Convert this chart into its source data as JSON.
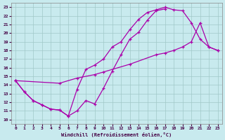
{
  "xlabel": "Windchill (Refroidissement éolien,°C)",
  "xlim": [
    -0.5,
    23.5
  ],
  "ylim": [
    9.5,
    23.5
  ],
  "xticks": [
    0,
    1,
    2,
    3,
    4,
    5,
    6,
    7,
    8,
    9,
    10,
    11,
    12,
    13,
    14,
    15,
    16,
    17,
    18,
    19,
    20,
    21,
    22,
    23
  ],
  "yticks": [
    10,
    11,
    12,
    13,
    14,
    15,
    16,
    17,
    18,
    19,
    20,
    21,
    22,
    23
  ],
  "bg_color": "#c8eaee",
  "line_color": "#aa00aa",
  "grid_color": "#a0c8c8",
  "line1_x": [
    0,
    1,
    2,
    3,
    4,
    5,
    6,
    7,
    8,
    9,
    10,
    11,
    12,
    13,
    14,
    15,
    16,
    17
  ],
  "line1_y": [
    14.5,
    13.2,
    12.2,
    11.7,
    11.2,
    11.1,
    10.4,
    11.0,
    12.2,
    11.8,
    13.6,
    15.6,
    17.5,
    19.3,
    20.1,
    21.5,
    22.6,
    22.8
  ],
  "line2_x": [
    0,
    1,
    2,
    3,
    4,
    5,
    6,
    7,
    8,
    9,
    10,
    11,
    12,
    13,
    14,
    15,
    16,
    17,
    18,
    19,
    20,
    21,
    22,
    23
  ],
  "line2_y": [
    14.5,
    13.2,
    12.2,
    11.7,
    11.2,
    11.1,
    10.4,
    13.5,
    15.8,
    16.3,
    17.0,
    18.4,
    19.0,
    20.4,
    21.6,
    22.4,
    22.7,
    23.0,
    22.7,
    22.6,
    21.2,
    19.3,
    18.4,
    18.0
  ],
  "line3_x": [
    0,
    5,
    7,
    9,
    10,
    13,
    16,
    17,
    18,
    19,
    20,
    21,
    22,
    23
  ],
  "line3_y": [
    14.5,
    14.2,
    14.8,
    15.2,
    15.5,
    16.4,
    17.5,
    17.7,
    18.0,
    18.4,
    19.0,
    21.2,
    18.4,
    18.0
  ]
}
